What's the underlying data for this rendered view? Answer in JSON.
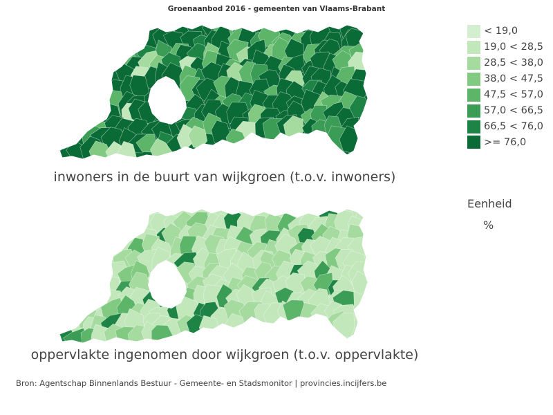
{
  "title": "Groenaanbod 2016 - gemeenten van Vlaams-Brabant",
  "maps": [
    {
      "caption": "inwoners in de buurt van wijkgroen (t.o.v. inwoners)",
      "dominant_class": 7,
      "accent_classes": [
        4,
        5,
        6,
        3,
        2,
        1
      ]
    },
    {
      "caption": "oppervlakte ingenomen door wijkgroen (t.o.v. oppervlakte)",
      "dominant_class": 1,
      "accent_classes": [
        2,
        3,
        4,
        5,
        6
      ]
    }
  ],
  "legend": {
    "items": [
      {
        "label": "< 19,0",
        "color": "#d4efcf"
      },
      {
        "label": "19,0 < 28,5",
        "color": "#c1e7bb"
      },
      {
        "label": "28,5 < 38,0",
        "color": "#a6dba0"
      },
      {
        "label": "38,0 < 47,5",
        "color": "#82c982"
      },
      {
        "label": "47,5 < 57,0",
        "color": "#5db56a"
      },
      {
        "label": "57,0 < 66,5",
        "color": "#3a9c55"
      },
      {
        "label": "66,5 < 76,0",
        "color": "#1e8446"
      },
      {
        "label": ">= 76,0",
        "color": "#0a6b37"
      }
    ],
    "unit_title": "Eenheid",
    "unit_value": "%"
  },
  "source": "Bron: Agentschap Binnenlands Bestuur - Gemeente- en Stadsmonitor | provincies.incijfers.be"
}
